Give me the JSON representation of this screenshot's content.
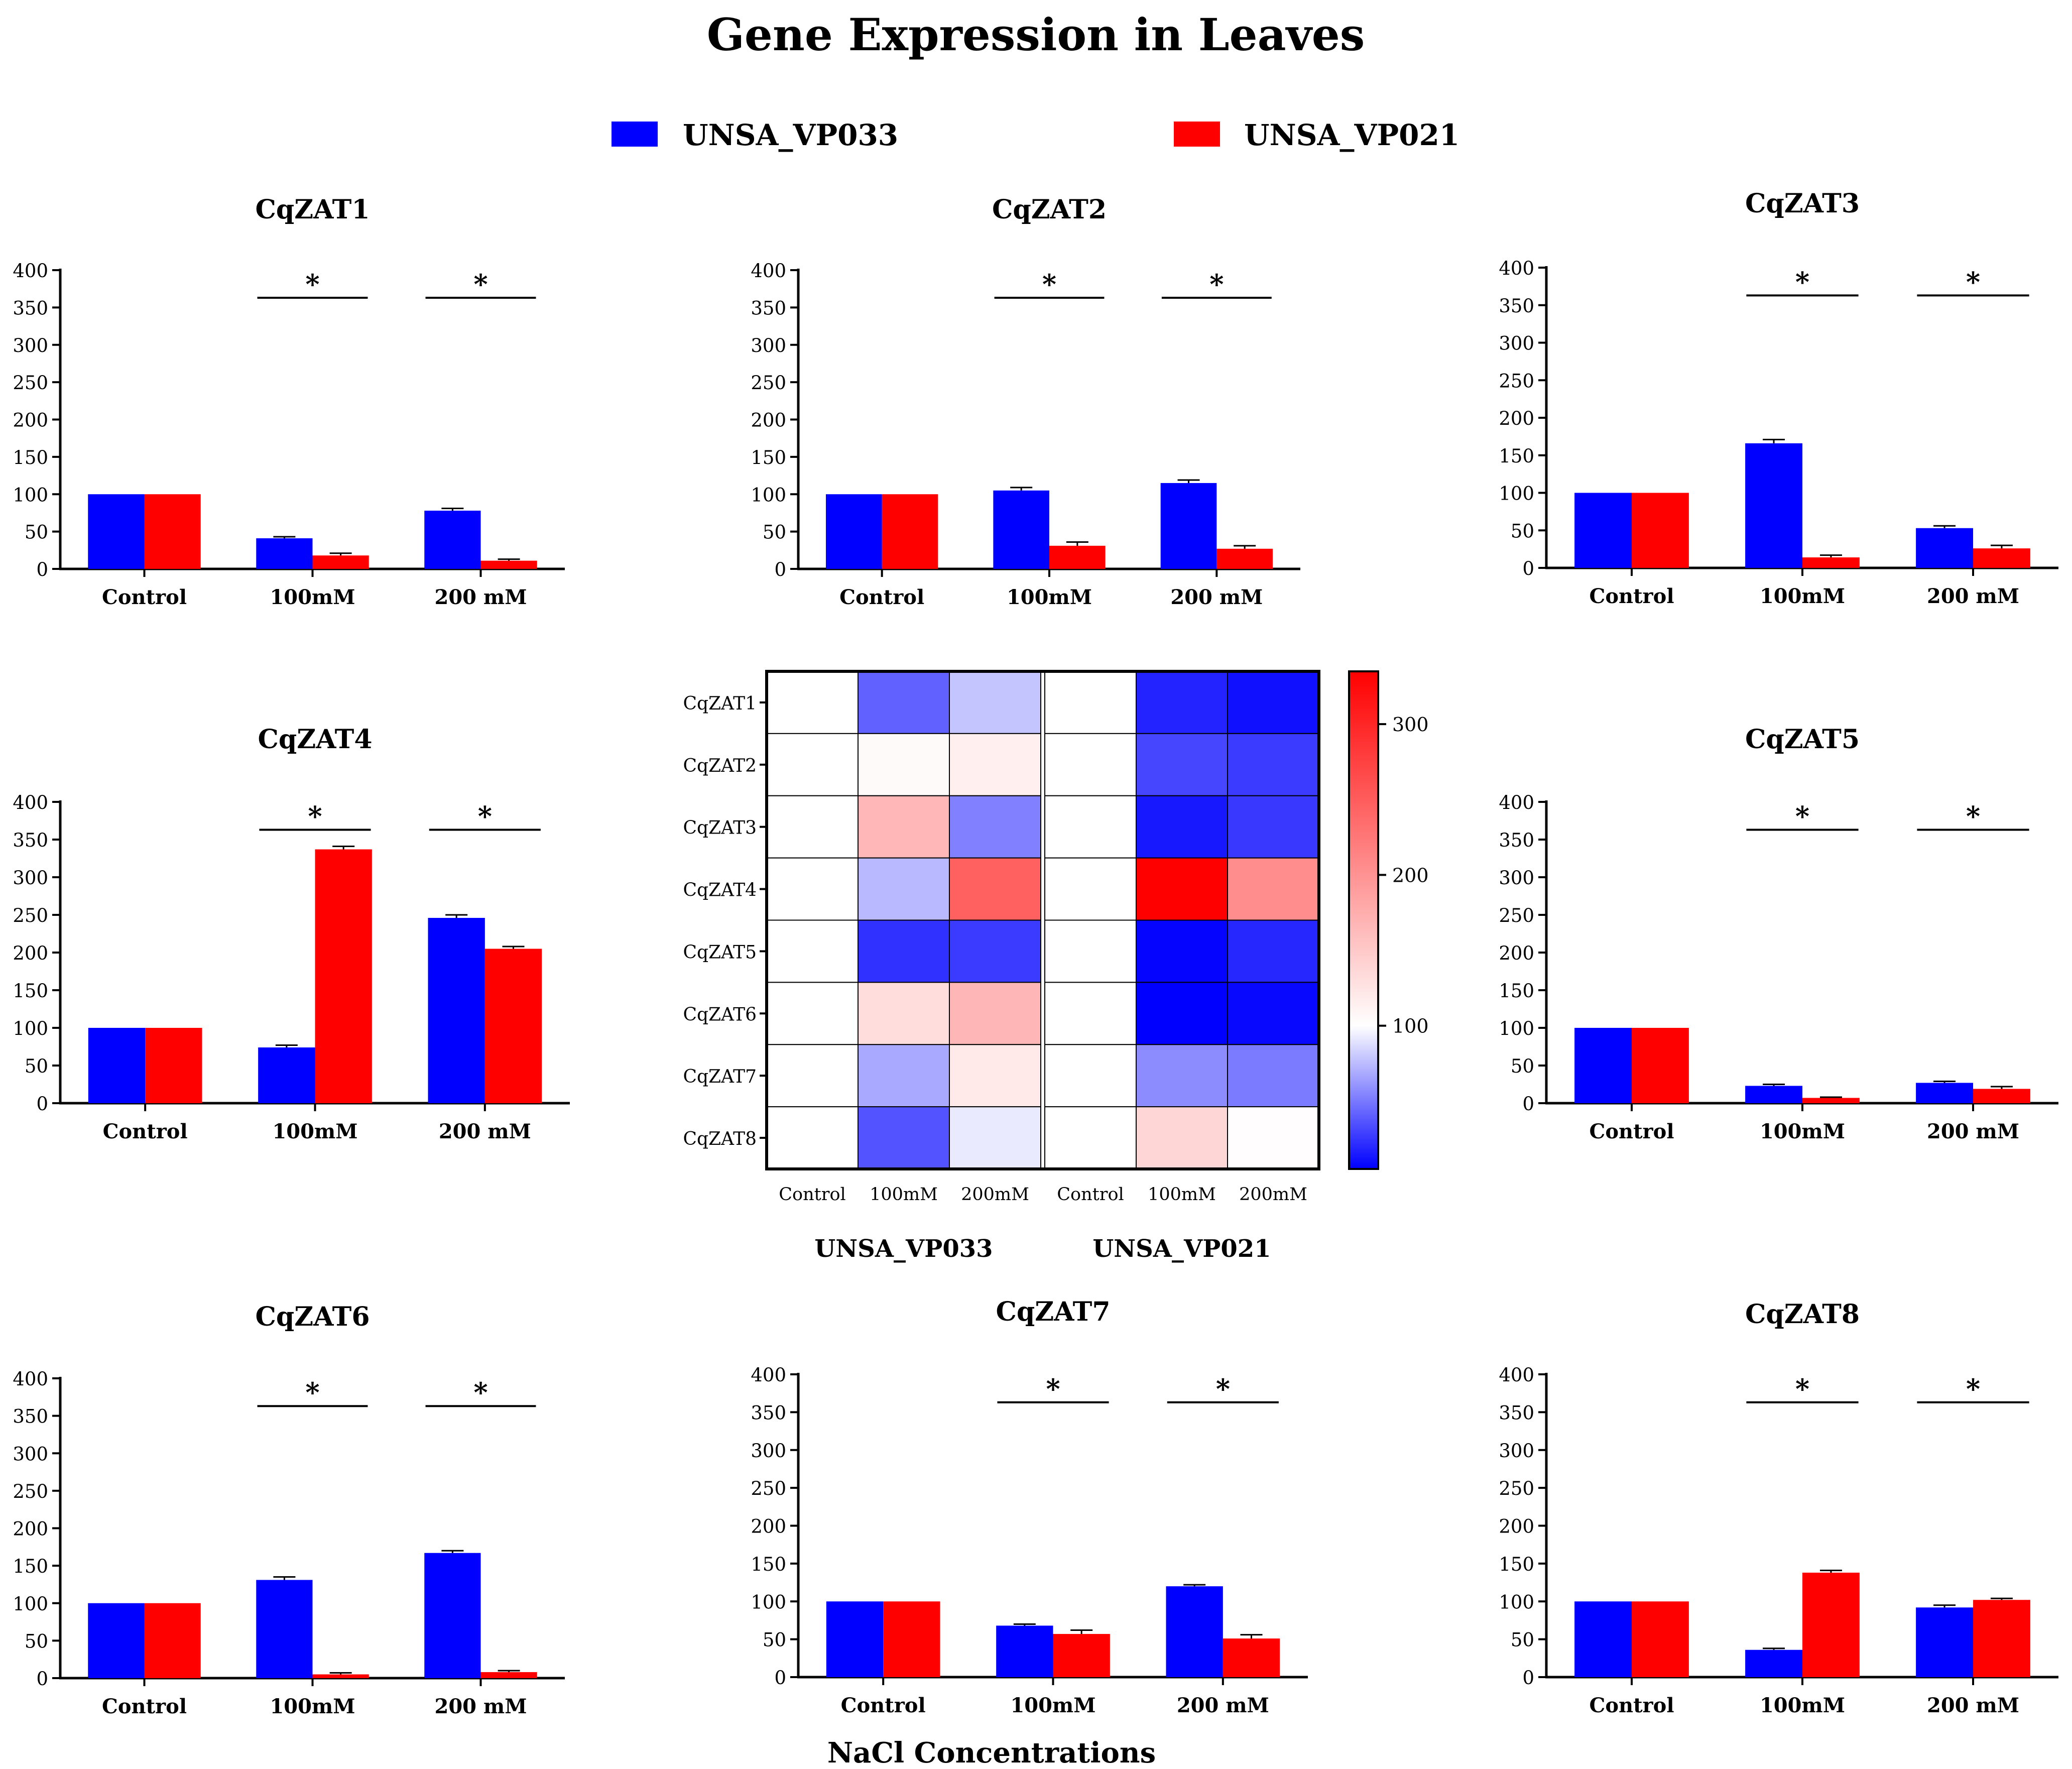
{
  "figure": {
    "title": "Gene Expression in Leaves",
    "xlabel": "NaCl Concentrations"
  },
  "legend": {
    "items": [
      {
        "label": "UNSA_VP033",
        "color": "#0000ff"
      },
      {
        "label": "UNSA_VP021",
        "color": "#ff0000"
      }
    ]
  },
  "colors": {
    "vp033": "#0000ff",
    "vp021": "#ff0000",
    "axis": "#000000"
  },
  "chart_data": [
    {
      "type": "bar",
      "title": "CqZAT1",
      "categories": [
        "Control",
        "100mM",
        "200 mM"
      ],
      "series": [
        {
          "name": "UNSA_VP033",
          "values": [
            100,
            41,
            78
          ],
          "errors": [
            0,
            2,
            3
          ]
        },
        {
          "name": "UNSA_VP021",
          "values": [
            100,
            18,
            11
          ],
          "errors": [
            0,
            3,
            2
          ]
        }
      ],
      "significance": [
        "",
        "*",
        "*"
      ],
      "ylim": [
        0,
        400
      ],
      "yticks": [
        0,
        50,
        100,
        150,
        200,
        250,
        300,
        350,
        400
      ]
    },
    {
      "type": "bar",
      "title": "CqZAT2",
      "categories": [
        "Control",
        "100mM",
        "200 mM"
      ],
      "series": [
        {
          "name": "UNSA_VP033",
          "values": [
            100,
            105,
            115
          ],
          "errors": [
            0,
            4,
            4
          ]
        },
        {
          "name": "UNSA_VP021",
          "values": [
            100,
            31,
            27
          ],
          "errors": [
            0,
            5,
            4
          ]
        }
      ],
      "significance": [
        "",
        "*",
        "*"
      ],
      "ylim": [
        0,
        400
      ],
      "yticks": [
        0,
        50,
        100,
        150,
        200,
        250,
        300,
        350,
        400
      ]
    },
    {
      "type": "bar",
      "title": "CqZAT3",
      "categories": [
        "Control",
        "100mM",
        "200 mM"
      ],
      "series": [
        {
          "name": "UNSA_VP033",
          "values": [
            100,
            166,
            53
          ],
          "errors": [
            0,
            5,
            3
          ]
        },
        {
          "name": "UNSA_VP021",
          "values": [
            100,
            14,
            26
          ],
          "errors": [
            0,
            3,
            4
          ]
        }
      ],
      "significance": [
        "",
        "*",
        "*"
      ],
      "ylim": [
        0,
        400
      ],
      "yticks": [
        0,
        50,
        100,
        150,
        200,
        250,
        300,
        350,
        400
      ]
    },
    {
      "type": "bar",
      "title": "CqZAT4",
      "categories": [
        "Control",
        "100mM",
        "200 mM"
      ],
      "series": [
        {
          "name": "UNSA_VP033",
          "values": [
            100,
            74,
            246
          ],
          "errors": [
            0,
            3,
            4
          ]
        },
        {
          "name": "UNSA_VP021",
          "values": [
            100,
            337,
            205
          ],
          "errors": [
            0,
            4,
            3
          ]
        }
      ],
      "significance": [
        "",
        "*",
        "*"
      ],
      "ylim": [
        0,
        400
      ],
      "yticks": [
        0,
        50,
        100,
        150,
        200,
        250,
        300,
        350,
        400
      ]
    },
    {
      "type": "bar",
      "title": "CqZAT5",
      "categories": [
        "Control",
        "100mM",
        "200 mM"
      ],
      "series": [
        {
          "name": "UNSA_VP033",
          "values": [
            100,
            23,
            27
          ],
          "errors": [
            0,
            2,
            2
          ]
        },
        {
          "name": "UNSA_VP021",
          "values": [
            100,
            7,
            19
          ],
          "errors": [
            0,
            1,
            3
          ]
        }
      ],
      "significance": [
        "",
        "*",
        "*"
      ],
      "ylim": [
        0,
        400
      ],
      "yticks": [
        0,
        50,
        100,
        150,
        200,
        250,
        300,
        350,
        400
      ]
    },
    {
      "type": "bar",
      "title": "CqZAT6",
      "categories": [
        "Control",
        "100mM",
        "200 mM"
      ],
      "series": [
        {
          "name": "UNSA_VP033",
          "values": [
            100,
            131,
            167
          ],
          "errors": [
            0,
            4,
            3
          ]
        },
        {
          "name": "UNSA_VP021",
          "values": [
            100,
            5,
            8
          ],
          "errors": [
            0,
            2,
            2
          ]
        }
      ],
      "significance": [
        "",
        "*",
        "*"
      ],
      "ylim": [
        0,
        400
      ],
      "yticks": [
        0,
        50,
        100,
        150,
        200,
        250,
        300,
        350,
        400
      ]
    },
    {
      "type": "bar",
      "title": "CqZAT7",
      "categories": [
        "Control",
        "100mM",
        "200 mM"
      ],
      "series": [
        {
          "name": "UNSA_VP033",
          "values": [
            100,
            68,
            120
          ],
          "errors": [
            0,
            2,
            2
          ]
        },
        {
          "name": "UNSA_VP021",
          "values": [
            100,
            57,
            51
          ],
          "errors": [
            0,
            5,
            5
          ]
        }
      ],
      "significance": [
        "",
        "*",
        "*"
      ],
      "ylim": [
        0,
        400
      ],
      "yticks": [
        0,
        50,
        100,
        150,
        200,
        250,
        300,
        350,
        400
      ]
    },
    {
      "type": "bar",
      "title": "CqZAT8",
      "categories": [
        "Control",
        "100mM",
        "200 mM"
      ],
      "series": [
        {
          "name": "UNSA_VP033",
          "values": [
            100,
            36,
            92
          ],
          "errors": [
            0,
            2,
            3
          ]
        },
        {
          "name": "UNSA_VP021",
          "values": [
            100,
            138,
            102
          ],
          "errors": [
            0,
            3,
            2
          ]
        }
      ],
      "significance": [
        "",
        "*",
        "*"
      ],
      "ylim": [
        0,
        400
      ],
      "yticks": [
        0,
        50,
        100,
        150,
        200,
        250,
        300,
        350,
        400
      ]
    },
    {
      "type": "heatmap",
      "rows": [
        "CqZAT1",
        "CqZAT2",
        "CqZAT3",
        "CqZAT4",
        "CqZAT5",
        "CqZAT6",
        "CqZAT7",
        "CqZAT8"
      ],
      "groups": [
        {
          "name": "UNSA_VP033",
          "columns": [
            "Control",
            "100mM",
            "200mM"
          ]
        },
        {
          "name": "UNSA_VP021",
          "columns": [
            "Control",
            "100mM",
            "200mM"
          ]
        }
      ],
      "values": [
        [
          100,
          41,
          78,
          100,
          18,
          11
        ],
        [
          100,
          105,
          115,
          100,
          31,
          27
        ],
        [
          100,
          166,
          53,
          100,
          14,
          26
        ],
        [
          100,
          74,
          246,
          100,
          337,
          205
        ],
        [
          100,
          23,
          27,
          100,
          7,
          19
        ],
        [
          100,
          131,
          167,
          100,
          5,
          8
        ],
        [
          100,
          68,
          120,
          100,
          57,
          51
        ],
        [
          100,
          36,
          92,
          100,
          138,
          102
        ]
      ],
      "colorscale": {
        "min": 5,
        "center": 100,
        "max": 335,
        "low": "#0000ff",
        "mid": "#ffffff",
        "high": "#ff0000"
      },
      "colorbar_ticks": [
        100,
        200,
        300
      ]
    }
  ]
}
